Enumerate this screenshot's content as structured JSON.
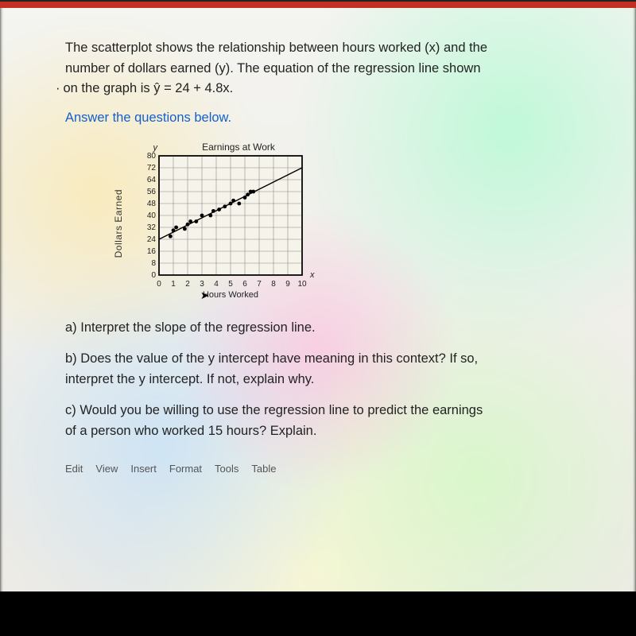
{
  "prompt": {
    "line1": "The scatterplot shows the relationship between hours worked (x) and the",
    "line2": "number of dollars earned (y). The equation of the regression line shown",
    "line3": "on the graph is ŷ = 24 + 4.8x.",
    "bullet": "·"
  },
  "instruction": "Answer the questions below.",
  "chart": {
    "title": "Earnings at Work",
    "ylabel": "Dollars Earned",
    "xlabel": "Hours Worked",
    "y_axis_letter": "y",
    "x_axis_letter": "x",
    "xticks": [
      0,
      1,
      2,
      3,
      4,
      5,
      6,
      7,
      8,
      9,
      10
    ],
    "yticks": [
      0,
      8,
      16,
      24,
      32,
      40,
      48,
      56,
      64,
      72,
      80
    ],
    "xlim": [
      0,
      10
    ],
    "ylim": [
      0,
      80
    ],
    "grid_color": "#8a8a8a",
    "axis_color": "#000000",
    "background_color": "#f6f3ea",
    "tick_fontsize": 10,
    "title_fontsize": 12,
    "label_fontsize": 12,
    "points": [
      {
        "x": 0.8,
        "y": 26
      },
      {
        "x": 1.0,
        "y": 30
      },
      {
        "x": 1.2,
        "y": 32
      },
      {
        "x": 1.8,
        "y": 31
      },
      {
        "x": 2.0,
        "y": 34
      },
      {
        "x": 2.2,
        "y": 36
      },
      {
        "x": 2.6,
        "y": 36
      },
      {
        "x": 3.0,
        "y": 40
      },
      {
        "x": 3.6,
        "y": 40
      },
      {
        "x": 3.8,
        "y": 43
      },
      {
        "x": 4.2,
        "y": 44
      },
      {
        "x": 4.6,
        "y": 46
      },
      {
        "x": 5.0,
        "y": 48
      },
      {
        "x": 5.2,
        "y": 50
      },
      {
        "x": 5.6,
        "y": 48
      },
      {
        "x": 6.0,
        "y": 52
      },
      {
        "x": 6.2,
        "y": 54
      },
      {
        "x": 6.4,
        "y": 56
      },
      {
        "x": 6.6,
        "y": 56
      }
    ],
    "point_color": "#000000",
    "point_radius": 2.4,
    "reg_line": {
      "x1": 0,
      "y1": 24,
      "x2": 10,
      "y2": 72
    },
    "line_color": "#000000",
    "line_width": 1.4
  },
  "questions": {
    "a": "a)  Interpret the slope of the regression line.",
    "b1": "b)  Does the value of the y intercept have meaning in this context? If so,",
    "b2": "interpret the y intercept. If not, explain why.",
    "c1": "c)  Would you be willing to use the regression line to predict the earnings",
    "c2": "of a person who worked 15 hours? Explain."
  },
  "toolbar": {
    "edit": "Edit",
    "view": "View",
    "insert": "Insert",
    "format": "Format",
    "tools": "Tools",
    "table": "Table"
  }
}
